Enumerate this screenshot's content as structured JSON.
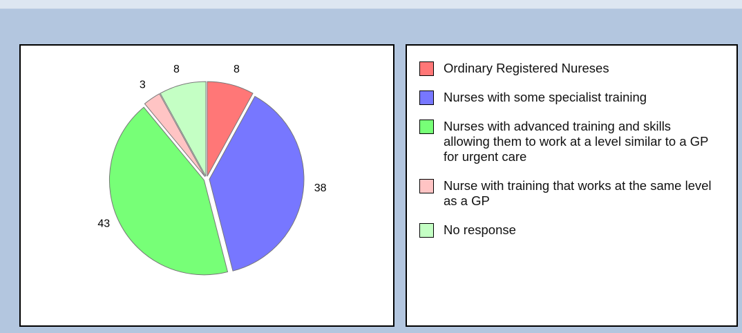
{
  "chart_data": {
    "type": "pie",
    "categories": [
      "Ordinary Registered Nureses",
      "Nurses with some specialist training",
      "Nurses with advanced training and skills allowing them to work at a level similar to a GP for urgent care",
      "Nurse with training that works at the same level as a GP",
      "No response"
    ],
    "values": [
      8,
      38,
      43,
      3,
      8
    ],
    "colors": [
      "#ff7777",
      "#7777ff",
      "#77ff77",
      "#ffc4c4",
      "#c4ffc4"
    ]
  }
}
